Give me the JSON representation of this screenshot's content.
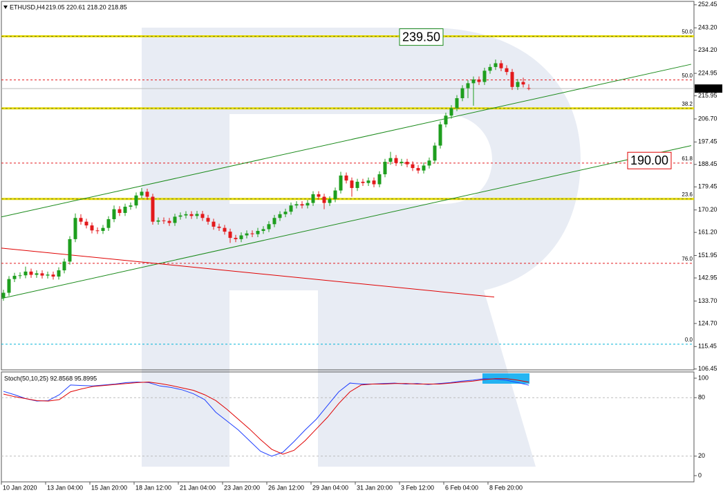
{
  "chart_data": [
    {
      "type": "candlestick",
      "symbol": "ETHUSD,H4",
      "ohlc_text": "219.05 220.61 218.20 218.85",
      "x_labels": [
        "10 Jan 2020",
        "13 Jan 04:00",
        "15 Jan 20:00",
        "18 Jan 12:00",
        "21 Jan 04:00",
        "23 Jan 20:00",
        "26 Jan 12:00",
        "29 Jan 04:00",
        "31 Jan 20:00",
        "3 Feb 12:00",
        "6 Feb 04:00",
        "8 Feb 20:00"
      ],
      "up_color": "#1e9e1e",
      "down_color": "#e31a1c",
      "ylim": [
        106.1,
        253.8
      ],
      "yticks": [
        252.45,
        {
          "value": 243.2,
          "label": "243.20"
        },
        {
          "value": 234.2,
          "label": "234.20"
        },
        224.95,
        215.95,
        {
          "value": 206.7,
          "label": "206.70"
        },
        197.45,
        188.45,
        179.45,
        {
          "value": 170.2,
          "label": "170.20"
        },
        {
          "value": 161.2,
          "label": "161.20"
        },
        151.95,
        142.95,
        {
          "value": 133.7,
          "label": "133.70"
        },
        {
          "value": 124.7,
          "label": "124.70"
        },
        115.45,
        106.45
      ],
      "current_price": 218.85,
      "fib_levels": [
        {
          "label": "50.0",
          "value": 239.8,
          "color": "#e6dc00",
          "label_color": "#2e8b2e"
        },
        {
          "label": "38.2",
          "value": 210.9,
          "color": "#e6dc00",
          "label_color": "#2e8b2e"
        },
        {
          "label": "23.6",
          "value": 174.6,
          "color": "#e6dc00",
          "label_color": "#2e8b2e"
        },
        {
          "label": "0.0",
          "value": 116.4,
          "color": "#00b4d8",
          "label_color": "#2e8b2e"
        },
        {
          "label": "50.0",
          "value": 222.3,
          "color": "#e31a1c",
          "label_color": "#e31a1c"
        },
        {
          "label": "61.8",
          "value": 189.0,
          "color": "#e31a1c",
          "label_color": "#e31a1c"
        },
        {
          "label": "76.0",
          "value": 148.8,
          "color": "#e31a1c",
          "label_color": "#e31a1c"
        }
      ],
      "annotations": [
        {
          "text": "239.50",
          "value": 239.5,
          "color": "#1a8a1a"
        },
        {
          "text": "190.00",
          "value": 190,
          "color": "#e00000"
        }
      ],
      "trendlines": [
        {
          "color": "#1a8a1a",
          "values": [
            167.4,
            228.6
          ]
        },
        {
          "color": "#1a8a1a",
          "values": [
            134.7,
            196.0
          ]
        },
        {
          "color": "#e00000",
          "values": [
            154.9,
            135.3
          ]
        }
      ],
      "candles": [
        [
          135.0,
          138.2,
          133.8,
          137.0
        ],
        [
          137.0,
          143.7,
          135.8,
          142.5
        ],
        [
          142.5,
          145.0,
          141.3,
          143.8
        ],
        [
          143.8,
          145.2,
          142.6,
          144.0
        ],
        [
          144.0,
          147.5,
          142.8,
          145.5
        ],
        [
          145.5,
          146.7,
          143.0,
          144.2
        ],
        [
          144.2,
          146.0,
          143.0,
          144.8
        ],
        [
          144.8,
          146.0,
          142.7,
          143.9
        ],
        [
          143.9,
          145.5,
          142.7,
          144.3
        ],
        [
          144.3,
          145.5,
          142.3,
          143.5
        ],
        [
          143.5,
          147.2,
          142.3,
          146.0
        ],
        [
          146.0,
          150.7,
          144.8,
          149.5
        ],
        [
          149.5,
          159.7,
          148.3,
          158.5
        ],
        [
          158.5,
          168.8,
          157.3,
          167.0
        ],
        [
          167.0,
          168.5,
          164.3,
          165.5
        ],
        [
          165.5,
          166.7,
          162.8,
          164.0
        ],
        [
          164.0,
          165.2,
          160.8,
          162.0
        ],
        [
          162.0,
          163.2,
          160.6,
          161.8
        ],
        [
          161.8,
          164.2,
          160.6,
          163.0
        ],
        [
          163.0,
          167.7,
          161.8,
          166.5
        ],
        [
          166.5,
          172.0,
          165.3,
          170.5
        ],
        [
          170.5,
          171.7,
          167.8,
          169.0
        ],
        [
          169.0,
          172.7,
          167.8,
          171.5
        ],
        [
          171.5,
          173.2,
          170.3,
          172.0
        ],
        [
          172.0,
          177.2,
          170.8,
          176.0
        ],
        [
          176.0,
          179.0,
          174.8,
          177.5
        ],
        [
          177.5,
          178.7,
          174.3,
          175.5
        ],
        [
          175.5,
          176.7,
          164.3,
          165.5
        ],
        [
          165.5,
          167.2,
          164.3,
          166.0
        ],
        [
          166.0,
          167.2,
          164.6,
          165.8
        ],
        [
          165.8,
          167.0,
          163.8,
          165.0
        ],
        [
          165.0,
          168.7,
          163.8,
          167.5
        ],
        [
          167.5,
          169.2,
          166.3,
          168.0
        ],
        [
          168.0,
          169.7,
          166.8,
          168.5
        ],
        [
          168.5,
          169.7,
          166.6,
          167.8
        ],
        [
          167.8,
          169.8,
          166.6,
          168.6
        ],
        [
          168.6,
          169.8,
          165.8,
          167.0
        ],
        [
          167.0,
          168.2,
          164.3,
          165.5
        ],
        [
          165.5,
          166.7,
          162.3,
          163.5
        ],
        [
          163.5,
          164.7,
          161.8,
          163.0
        ],
        [
          163.0,
          164.2,
          160.3,
          161.5
        ],
        [
          161.5,
          162.7,
          157.0,
          159.0
        ],
        [
          159.0,
          160.2,
          157.3,
          158.5
        ],
        [
          158.5,
          161.2,
          157.3,
          160.0
        ],
        [
          160.0,
          162.0,
          158.8,
          160.8
        ],
        [
          160.8,
          162.0,
          159.3,
          160.5
        ],
        [
          160.5,
          163.0,
          159.3,
          161.8
        ],
        [
          161.8,
          163.7,
          160.6,
          162.5
        ],
        [
          162.5,
          165.7,
          161.3,
          164.5
        ],
        [
          164.5,
          168.2,
          163.3,
          167.0
        ],
        [
          167.0,
          169.7,
          165.8,
          168.5
        ],
        [
          168.5,
          170.7,
          167.3,
          169.5
        ],
        [
          169.5,
          173.2,
          168.3,
          172.0
        ],
        [
          172.0,
          173.7,
          170.8,
          172.5
        ],
        [
          172.5,
          173.7,
          170.8,
          172.0
        ],
        [
          172.0,
          174.2,
          170.8,
          173.0
        ],
        [
          173.0,
          177.7,
          171.8,
          176.5
        ],
        [
          176.5,
          177.7,
          174.3,
          175.5
        ],
        [
          175.5,
          176.7,
          170.5,
          173.0
        ],
        [
          173.0,
          175.7,
          171.8,
          174.5
        ],
        [
          174.5,
          179.2,
          173.3,
          178.0
        ],
        [
          178.0,
          185.5,
          176.8,
          184.0
        ],
        [
          184.0,
          185.2,
          180.8,
          182.0
        ],
        [
          182.0,
          183.2,
          175.5,
          179.0
        ],
        [
          179.0,
          182.7,
          177.8,
          181.5
        ],
        [
          181.5,
          182.7,
          179.8,
          181.0
        ],
        [
          181.0,
          183.2,
          179.8,
          182.0
        ],
        [
          182.0,
          183.2,
          179.3,
          180.5
        ],
        [
          180.5,
          185.7,
          179.3,
          184.5
        ],
        [
          184.5,
          190.7,
          183.3,
          189.5
        ],
        [
          189.5,
          193.5,
          188.3,
          191.0
        ],
        [
          191.0,
          192.2,
          187.8,
          189.0
        ],
        [
          189.0,
          190.7,
          187.8,
          189.5
        ],
        [
          189.5,
          190.7,
          187.3,
          188.5
        ],
        [
          188.5,
          189.7,
          185.8,
          187.0
        ],
        [
          187.0,
          188.2,
          184.8,
          186.0
        ],
        [
          186.0,
          189.2,
          184.8,
          188.0
        ],
        [
          188.0,
          191.2,
          186.8,
          190.0
        ],
        [
          190.0,
          197.2,
          188.8,
          196.0
        ],
        [
          196.0,
          205.7,
          194.8,
          204.5
        ],
        [
          204.5,
          209.2,
          203.3,
          208.0
        ],
        [
          208.0,
          212.2,
          206.8,
          211.0
        ],
        [
          211.0,
          216.2,
          209.8,
          215.0
        ],
        [
          215.0,
          220.2,
          213.8,
          219.0
        ],
        [
          219.0,
          222.2,
          215.0,
          221.0
        ],
        [
          221.0,
          223.7,
          212.0,
          222.5
        ],
        [
          222.5,
          223.7,
          220.3,
          221.5
        ],
        [
          221.5,
          227.2,
          220.3,
          226.0
        ],
        [
          226.0,
          228.7,
          224.8,
          227.5
        ],
        [
          227.5,
          230.5,
          226.3,
          229.0
        ],
        [
          229.0,
          230.2,
          225.8,
          227.0
        ],
        [
          227.0,
          228.2,
          224.3,
          225.5
        ],
        [
          225.5,
          226.7,
          218.3,
          219.5
        ],
        [
          219.5,
          222.7,
          218.3,
          221.5
        ],
        [
          221.5,
          223.2,
          219.3,
          220.5
        ],
        [
          219.05,
          220.61,
          218.2,
          218.85
        ]
      ]
    },
    {
      "type": "line",
      "title": "Stoch(50,10,25) 92.8568 95.8995",
      "ylim": [
        -6.4,
        106.4
      ],
      "yticks": [
        0,
        20,
        80,
        100
      ],
      "levels": [
        20,
        80
      ],
      "series": [
        {
          "color": "#1f3fff",
          "values": [
            86.5,
            83,
            79,
            76.5,
            77,
            83,
            93,
            92.5,
            92,
            93,
            94,
            95.5,
            96,
            95.5,
            92,
            90.5,
            88,
            84,
            78,
            65,
            56,
            47,
            36,
            25,
            20,
            24,
            35,
            47,
            58,
            72,
            86,
            95,
            94,
            94,
            94.5,
            95,
            94,
            94.5,
            93.5,
            94.5,
            95.5,
            97,
            98,
            99.5,
            99,
            98,
            95.5,
            92.8568
          ]
        },
        {
          "color": "#e00000",
          "values": [
            83.7,
            81,
            79,
            77,
            76.5,
            78,
            86,
            89,
            91.5,
            92.5,
            93.5,
            94.5,
            95.5,
            96,
            94.5,
            92.5,
            90,
            87.5,
            83,
            77,
            68,
            58,
            48,
            37,
            27,
            22,
            26,
            36,
            48,
            60,
            74,
            86,
            93,
            94,
            94,
            94.5,
            94.5,
            94,
            94,
            94,
            95,
            96,
            97,
            98.5,
            99.5,
            99.5,
            98,
            95.8995
          ]
        }
      ]
    }
  ]
}
